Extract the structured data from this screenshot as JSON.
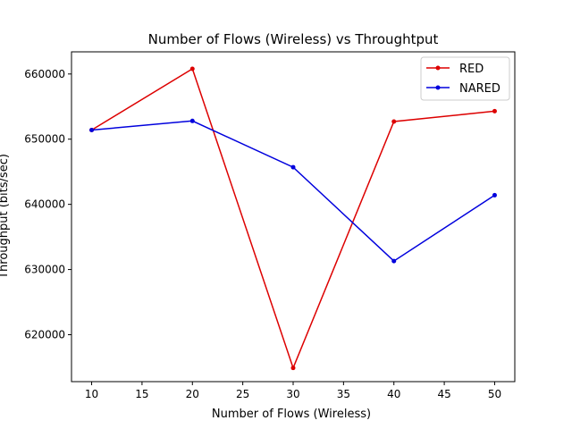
{
  "chart_data": {
    "type": "line",
    "title": "Number of Flows (Wireless)  vs Throughtput",
    "xlabel": "Number of Flows (Wireless)",
    "ylabel": "Throughput (bits/sec)",
    "x": [
      10,
      20,
      30,
      40,
      50
    ],
    "xlim": [
      8,
      52
    ],
    "ylim": [
      612800,
      663400
    ],
    "xticks": [
      10,
      15,
      20,
      25,
      30,
      35,
      40,
      45,
      50
    ],
    "yticks": [
      620000,
      630000,
      640000,
      650000,
      660000
    ],
    "legend_position": "top-right",
    "grid": false,
    "series": [
      {
        "name": "RED",
        "color": "#dd0000",
        "values": [
          651400,
          660800,
          614900,
          652700,
          654300
        ]
      },
      {
        "name": "NARED",
        "color": "#0000dd",
        "values": [
          651400,
          652800,
          645700,
          631300,
          641400
        ]
      }
    ]
  }
}
